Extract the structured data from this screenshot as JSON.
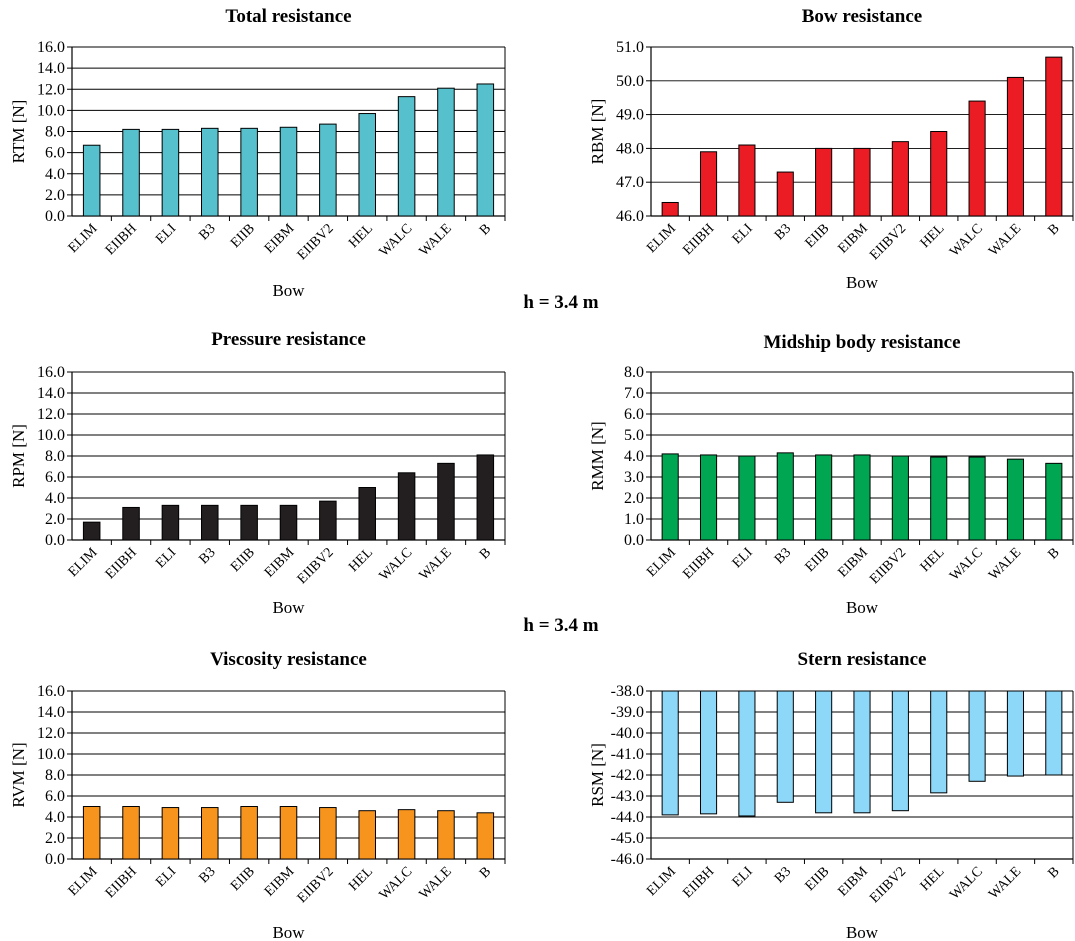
{
  "section_labels": [
    "h = 3.4 m",
    "h = 3.4 m"
  ],
  "chart_data": [
    {
      "type": "bar",
      "title": "Total resistance",
      "xlabel": "Bow",
      "ylabel": "RTM [N]",
      "categories": [
        "ELIM",
        "EIIBH",
        "ELI",
        "B3",
        "EIIB",
        "EIBM",
        "EIIBV2",
        "HEL",
        "WALC",
        "WALE",
        "B"
      ],
      "values": [
        6.7,
        8.2,
        8.2,
        8.3,
        8.3,
        8.4,
        8.7,
        9.7,
        11.3,
        12.1,
        12.5
      ],
      "ylim": [
        0,
        16
      ],
      "yticks": [
        "0.0",
        "2.0",
        "4.0",
        "6.0",
        "8.0",
        "10.0",
        "12.0",
        "14.0",
        "16.0"
      ],
      "grid": true,
      "color": "#56C1CC"
    },
    {
      "type": "bar",
      "title": "Bow resistance",
      "xlabel": "Bow",
      "ylabel": "RBM [N]",
      "categories": [
        "ELIM",
        "EIIBH",
        "ELI",
        "B3",
        "EIIB",
        "EIBM",
        "EIIBV2",
        "HEL",
        "WALC",
        "WALE",
        "B"
      ],
      "values": [
        46.4,
        47.9,
        48.1,
        47.3,
        48.0,
        48.0,
        48.2,
        48.5,
        49.4,
        50.1,
        50.7
      ],
      "ylim": [
        46,
        51
      ],
      "yticks": [
        "46.0",
        "47.0",
        "48.0",
        "49.0",
        "50.0",
        "51.0"
      ],
      "grid": true,
      "color": "#EC1C24"
    },
    {
      "type": "bar",
      "title": "Pressure resistance",
      "xlabel": "Bow",
      "ylabel": "RPM [N]",
      "categories": [
        "ELIM",
        "EIIBH",
        "ELI",
        "B3",
        "EIIB",
        "EIBM",
        "EIIBV2",
        "HEL",
        "WALC",
        "WALE",
        "B"
      ],
      "values": [
        1.7,
        3.1,
        3.3,
        3.3,
        3.3,
        3.3,
        3.7,
        5.0,
        6.4,
        7.3,
        8.1
      ],
      "ylim": [
        0,
        16
      ],
      "yticks": [
        "0.0",
        "2.0",
        "4.0",
        "6.0",
        "8.0",
        "10.0",
        "12.0",
        "14.0",
        "16.0"
      ],
      "grid": true,
      "color": "#231F20"
    },
    {
      "type": "bar",
      "title": "Midship body resistance",
      "xlabel": "Bow",
      "ylabel": "RMM [N]",
      "categories": [
        "ELIM",
        "EIIBH",
        "ELI",
        "B3",
        "EIIB",
        "EIBM",
        "EIIBV2",
        "HEL",
        "WALC",
        "WALE",
        "B"
      ],
      "values": [
        4.1,
        4.05,
        4.0,
        4.15,
        4.05,
        4.05,
        4.0,
        3.95,
        3.95,
        3.85,
        3.65
      ],
      "ylim": [
        0,
        8
      ],
      "yticks": [
        "0.0",
        "1.0",
        "2.0",
        "3.0",
        "4.0",
        "5.0",
        "6.0",
        "7.0",
        "8.0"
      ],
      "grid": true,
      "color": "#00A651"
    },
    {
      "type": "bar",
      "title": "Viscosity resistance",
      "xlabel": "Bow",
      "ylabel": "RVM [N]",
      "categories": [
        "ELIM",
        "EIIBH",
        "ELI",
        "B3",
        "EIIB",
        "EIBM",
        "EIIBV2",
        "HEL",
        "WALC",
        "WALE",
        "B"
      ],
      "values": [
        5.0,
        5.0,
        4.9,
        4.9,
        5.0,
        5.0,
        4.9,
        4.6,
        4.7,
        4.6,
        4.4
      ],
      "ylim": [
        0,
        16
      ],
      "yticks": [
        "0.0",
        "2.0",
        "4.0",
        "6.0",
        "8.0",
        "10.0",
        "12.0",
        "14.0",
        "16.0"
      ],
      "grid": true,
      "color": "#F7941E"
    },
    {
      "type": "bar",
      "title": "Stern resistance",
      "xlabel": "Bow",
      "ylabel": "RSM [N]",
      "categories": [
        "ELIM",
        "EIIBH",
        "ELI",
        "B3",
        "EIIB",
        "EIBM",
        "EIIBV2",
        "HEL",
        "WALC",
        "WALE",
        "B"
      ],
      "values": [
        -43.9,
        -43.85,
        -43.95,
        -43.3,
        -43.8,
        -43.8,
        -43.7,
        -42.85,
        -42.3,
        -42.05,
        -42.0
      ],
      "ylim": [
        -46,
        -38
      ],
      "yticks": [
        "-46.0",
        "-45.0",
        "-44.0",
        "-43.0",
        "-42.0",
        "-41.0",
        "-40.0",
        "-39.0",
        "-38.0"
      ],
      "grid": true,
      "color": "#8DD8F8"
    }
  ]
}
